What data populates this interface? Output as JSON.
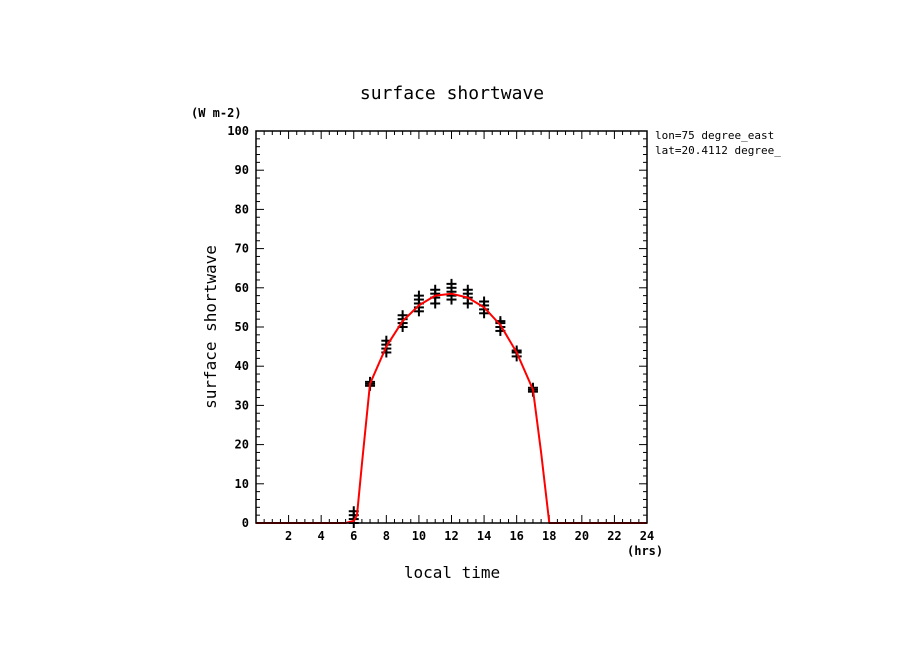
{
  "chart_data": {
    "type": "line",
    "title": "surface shortwave",
    "ylabel": "surface shortwave",
    "xlabel": "local time",
    "y_unit": "(W m-2)",
    "x_unit": "(hrs)",
    "annotations": [
      "lon=75 degree_east",
      "lat=20.4112 degree_"
    ],
    "xlim": [
      0,
      24
    ],
    "ylim": [
      0,
      100
    ],
    "x_ticks": [
      2,
      4,
      6,
      8,
      10,
      12,
      14,
      16,
      18,
      20,
      22,
      24
    ],
    "y_ticks": [
      0,
      10,
      20,
      30,
      40,
      50,
      60,
      70,
      80,
      90,
      100
    ],
    "grid": false,
    "series": [
      {
        "kind": "line",
        "color": "#ff0000",
        "x": [
          0,
          1,
          2,
          3,
          4,
          5,
          5.5,
          6,
          6.2,
          6.5,
          7,
          8,
          9,
          10,
          11,
          12,
          13,
          14,
          15,
          16,
          17,
          17.5,
          18,
          19,
          20,
          21,
          22,
          23,
          24
        ],
        "y": [
          0,
          0,
          0,
          0,
          0,
          0,
          0,
          0.5,
          2,
          15,
          35.5,
          45,
          51.5,
          55.5,
          58,
          58.5,
          57.5,
          55,
          50.5,
          43.5,
          34,
          18,
          0,
          0,
          0,
          0,
          0,
          0,
          0
        ]
      },
      {
        "kind": "scatter",
        "marker": "+",
        "color": "#000000",
        "points": [
          [
            6,
            0
          ],
          [
            6,
            1
          ],
          [
            6,
            2
          ],
          [
            6,
            3
          ],
          [
            7,
            35
          ],
          [
            7,
            35.5
          ],
          [
            7,
            36
          ],
          [
            8,
            43.5
          ],
          [
            8,
            44.5
          ],
          [
            8,
            45.5
          ],
          [
            8,
            46.5
          ],
          [
            9,
            50
          ],
          [
            9,
            51
          ],
          [
            9,
            52
          ],
          [
            9,
            53
          ],
          [
            10,
            54
          ],
          [
            10,
            55
          ],
          [
            10,
            56
          ],
          [
            10,
            57
          ],
          [
            10,
            58
          ],
          [
            11,
            56
          ],
          [
            11,
            57.5
          ],
          [
            11,
            58.5
          ],
          [
            11,
            59.5
          ],
          [
            12,
            57
          ],
          [
            12,
            58
          ],
          [
            12,
            59
          ],
          [
            12,
            60
          ],
          [
            12,
            61
          ],
          [
            13,
            56
          ],
          [
            13,
            57.5
          ],
          [
            13,
            58.5
          ],
          [
            13,
            59.5
          ],
          [
            14,
            53.5
          ],
          [
            14,
            54.5
          ],
          [
            14,
            55.5
          ],
          [
            14,
            56.5
          ],
          [
            15,
            49
          ],
          [
            15,
            50
          ],
          [
            15,
            51
          ],
          [
            15,
            51.5
          ],
          [
            16,
            42.5
          ],
          [
            16,
            43.5
          ],
          [
            16,
            44
          ],
          [
            17,
            33.5
          ],
          [
            17,
            34
          ],
          [
            17,
            34.5
          ]
        ]
      }
    ]
  }
}
